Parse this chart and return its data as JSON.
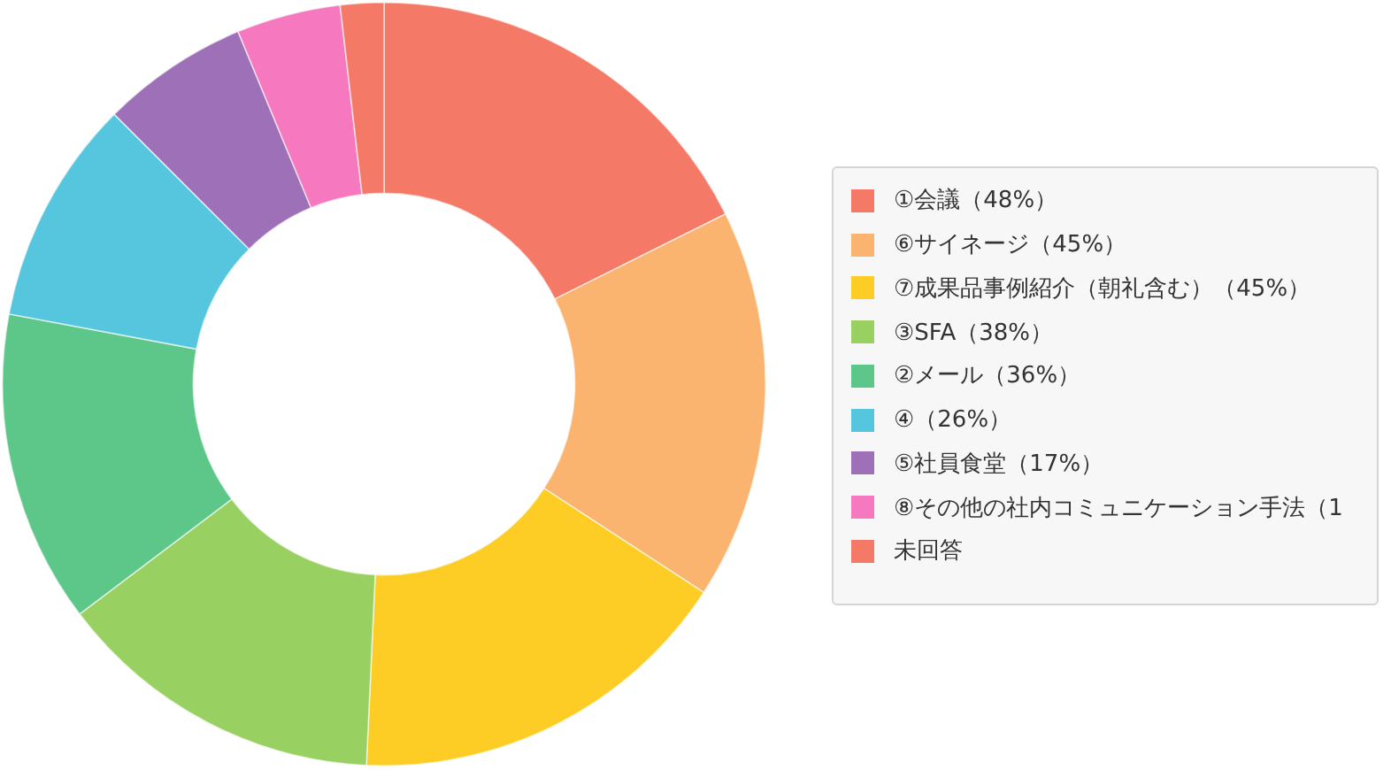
{
  "chart_data": {
    "type": "donut",
    "categories": [
      "①会議（48%）",
      "⑥サイネージ（45%）",
      "⑦成果品事例紹介（朝礼含む）（45%）",
      "③SFA（38%）",
      "②メール（36%）",
      "④（26%）",
      "⑤社員食堂（17%）",
      "⑧その他の社内コミュニケーション手法（1",
      "未回答"
    ],
    "values": [
      48,
      45,
      45,
      38,
      36,
      26,
      17,
      12,
      5
    ],
    "colors": [
      "#f47a67",
      "#fab46f",
      "#fdcd25",
      "#98d062",
      "#5dc689",
      "#55c6de",
      "#9e70b7",
      "#f678be",
      "#f47a67"
    ],
    "legend": "right"
  }
}
